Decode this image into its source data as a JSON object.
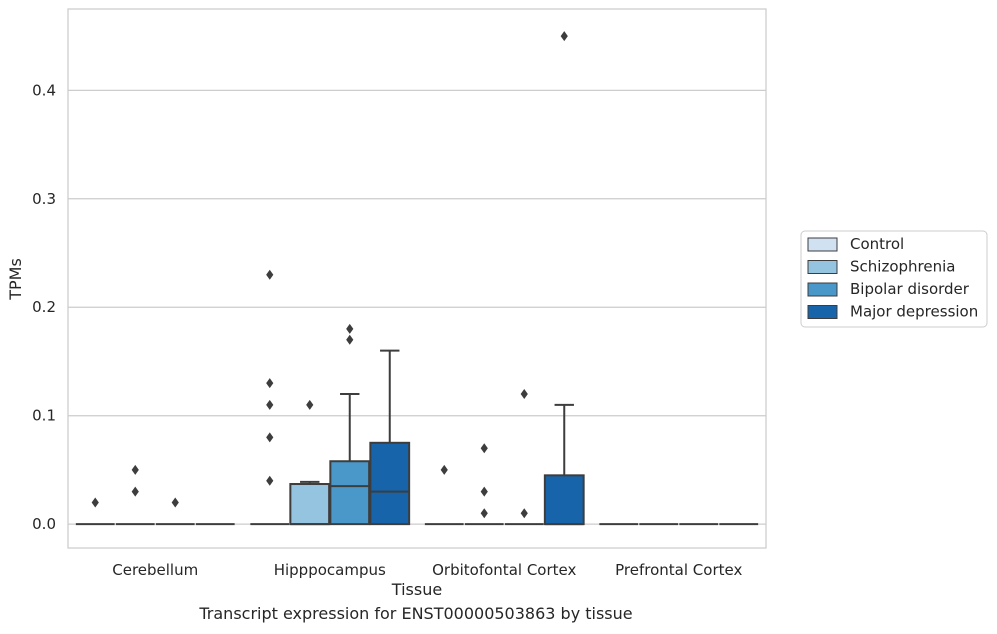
{
  "caption": "Transcript expression for ENST00000503863 by tissue",
  "chart_data": {
    "type": "box",
    "xlabel": "Tissue",
    "ylabel": "TPMs",
    "ylim": [
      -0.022,
      0.475
    ],
    "yticks": [
      0.0,
      0.1,
      0.2,
      0.3,
      0.4
    ],
    "ytick_labels": [
      "0.0",
      "0.1",
      "0.2",
      "0.3",
      "0.4"
    ],
    "grid": "horizontal",
    "legend_position": "right",
    "categories": [
      "Cerebellum",
      "Hipppocampus",
      "Orbitofontal Cortex",
      "Prefrontal Cortex"
    ],
    "series": [
      {
        "name": "Control",
        "color": "#d0e1f2",
        "boxes": [
          {
            "q1": 0,
            "median": 0,
            "q3": 0,
            "whisker_low": 0,
            "whisker_high": 0,
            "outliers": [
              0.02
            ]
          },
          {
            "q1": 0,
            "median": 0,
            "q3": 0,
            "whisker_low": 0,
            "whisker_high": 0,
            "outliers": [
              0.04,
              0.08,
              0.11,
              0.13,
              0.23
            ]
          },
          {
            "q1": 0,
            "median": 0,
            "q3": 0,
            "whisker_low": 0,
            "whisker_high": 0,
            "outliers": [
              0.05
            ]
          },
          {
            "q1": 0,
            "median": 0,
            "q3": 0,
            "whisker_low": 0,
            "whisker_high": 0,
            "outliers": []
          }
        ]
      },
      {
        "name": "Schizophrenia",
        "color": "#94c4df",
        "boxes": [
          {
            "q1": 0,
            "median": 0,
            "q3": 0,
            "whisker_low": 0,
            "whisker_high": 0,
            "outliers": [
              0.03,
              0.05
            ]
          },
          {
            "q1": 0,
            "median": 0,
            "q3": 0.037,
            "whisker_low": 0,
            "whisker_high": 0.039,
            "outliers": [
              0.11
            ]
          },
          {
            "q1": 0,
            "median": 0,
            "q3": 0,
            "whisker_low": 0,
            "whisker_high": 0,
            "outliers": [
              0.01,
              0.03,
              0.07
            ]
          },
          {
            "q1": 0,
            "median": 0,
            "q3": 0,
            "whisker_low": 0,
            "whisker_high": 0,
            "outliers": []
          }
        ]
      },
      {
        "name": "Bipolar disorder",
        "color": "#4a98c9",
        "boxes": [
          {
            "q1": 0,
            "median": 0,
            "q3": 0,
            "whisker_low": 0,
            "whisker_high": 0,
            "outliers": [
              0.02
            ]
          },
          {
            "q1": 0,
            "median": 0.035,
            "q3": 0.058,
            "whisker_low": 0,
            "whisker_high": 0.12,
            "outliers": [
              0.17,
              0.18
            ]
          },
          {
            "q1": 0,
            "median": 0,
            "q3": 0,
            "whisker_low": 0,
            "whisker_high": 0,
            "outliers": [
              0.01,
              0.12
            ]
          },
          {
            "q1": 0,
            "median": 0,
            "q3": 0,
            "whisker_low": 0,
            "whisker_high": 0,
            "outliers": []
          }
        ]
      },
      {
        "name": "Major depression",
        "color": "#1764ab",
        "boxes": [
          {
            "q1": 0,
            "median": 0,
            "q3": 0,
            "whisker_low": 0,
            "whisker_high": 0,
            "outliers": []
          },
          {
            "q1": 0,
            "median": 0.03,
            "q3": 0.075,
            "whisker_low": 0,
            "whisker_high": 0.16,
            "outliers": []
          },
          {
            "q1": 0,
            "median": 0,
            "q3": 0.045,
            "whisker_low": 0,
            "whisker_high": 0.11,
            "outliers": [
              0.45
            ]
          },
          {
            "q1": 0,
            "median": 0,
            "q3": 0,
            "whisker_low": 0,
            "whisker_high": 0,
            "outliers": []
          }
        ]
      }
    ]
  }
}
